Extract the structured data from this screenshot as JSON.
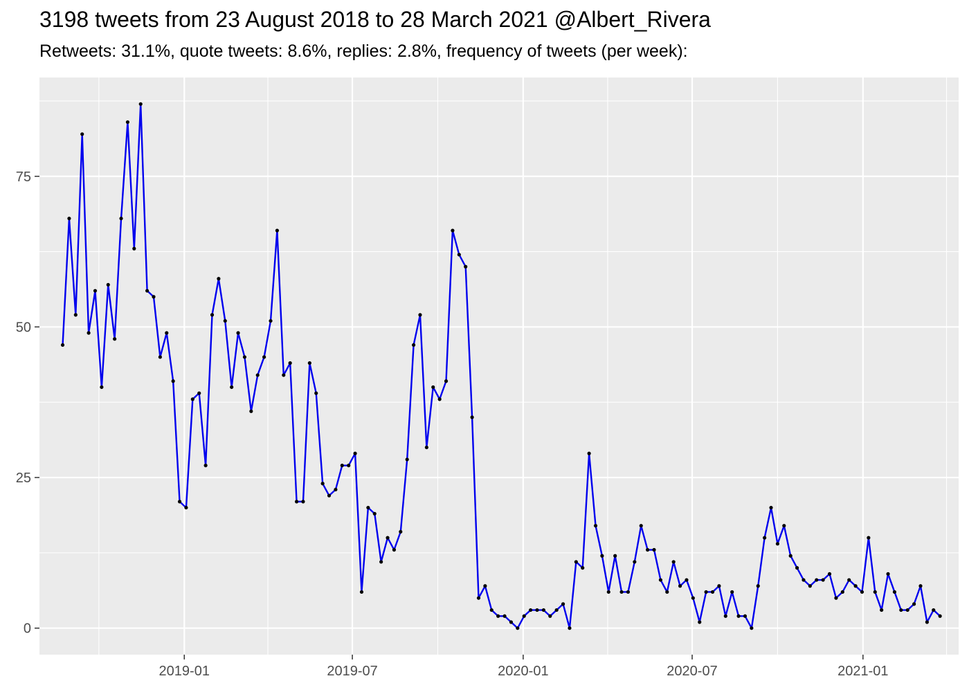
{
  "chart_data": {
    "type": "line",
    "title": "3198 tweets from 23 August 2018 to 28 March 2021 @Albert_Rivera",
    "subtitle": "Retweets: 31.1%, quote tweets: 8.6%, replies: 2.8%, frequency of tweets (per week):",
    "xlabel": "",
    "ylabel": "",
    "x_axis_type": "date",
    "xlim": [
      "2018-07-29",
      "2021-04-14"
    ],
    "ylim": [
      -4.4,
      91.4
    ],
    "x_ticks": [
      {
        "date": "2019-01-01",
        "label": "2019-01"
      },
      {
        "date": "2019-07-01",
        "label": "2019-07"
      },
      {
        "date": "2020-01-01",
        "label": "2020-01"
      },
      {
        "date": "2020-07-01",
        "label": "2020-07"
      },
      {
        "date": "2021-01-01",
        "label": "2021-01"
      }
    ],
    "x_minor_ticks": [
      "2018-10-01",
      "2019-04-01",
      "2019-10-01",
      "2020-04-01",
      "2020-10-01",
      "2021-04-01"
    ],
    "y_ticks": [
      0,
      25,
      50,
      75
    ],
    "y_minor_ticks": [
      12.5,
      37.5,
      62.5,
      87.5
    ],
    "grid": true,
    "legend": "none",
    "colors": {
      "panel_background": "#EBEBEB",
      "grid_line": "#FFFFFF",
      "line": "#0000EE",
      "point": "#000000",
      "tick_label": "#4D4D4D"
    },
    "series": [
      {
        "start_date": "2018-08-23",
        "step_days": 7,
        "values": [
          47,
          68,
          52,
          82,
          49,
          56,
          40,
          57,
          48,
          68,
          84,
          63,
          87,
          56,
          55,
          45,
          49,
          41,
          21,
          20,
          38,
          39,
          27,
          52,
          58,
          51,
          40,
          49,
          45,
          36,
          42,
          45,
          51,
          66,
          42,
          44,
          21,
          21,
          44,
          39,
          24,
          22,
          23,
          27,
          27,
          29,
          6,
          20,
          19,
          11,
          15,
          13,
          16,
          28,
          47,
          52,
          30,
          40,
          38,
          41,
          66,
          62,
          60,
          35,
          5,
          7,
          3,
          2,
          2,
          1,
          0,
          2,
          3,
          3,
          3,
          2,
          3,
          4,
          0,
          11,
          10,
          29,
          17,
          12,
          6,
          12,
          6,
          6,
          11,
          17,
          13,
          13,
          8,
          6,
          11,
          7,
          8,
          5,
          1,
          6,
          6,
          7,
          2,
          6,
          2,
          2,
          0,
          7,
          15,
          20,
          14,
          17,
          12,
          10,
          8,
          7,
          8,
          8,
          9,
          5,
          6,
          8,
          7,
          6,
          15,
          6,
          3,
          9,
          6,
          3,
          3,
          4,
          7,
          1,
          3,
          2
        ]
      }
    ]
  }
}
